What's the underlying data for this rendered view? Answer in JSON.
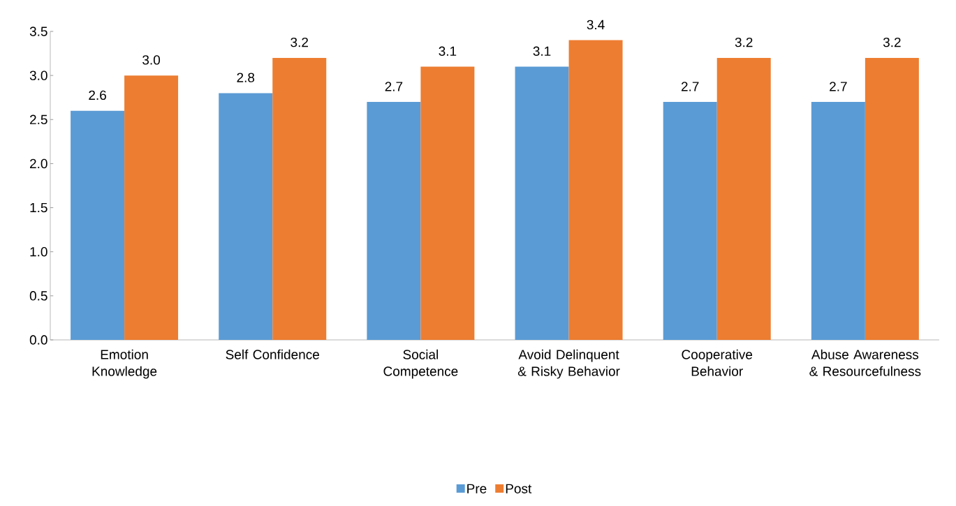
{
  "chart_data": {
    "type": "bar",
    "categories": [
      "Emotion Knowledge",
      "Self Confidence",
      "Social Competence",
      "Avoid Delinquent & Risky Behavior",
      "Cooperative Behavior",
      "Abuse Awareness & Resourcefulness"
    ],
    "series": [
      {
        "name": "Pre",
        "color": "#5b9bd5",
        "values": [
          2.6,
          2.8,
          2.7,
          3.1,
          2.7,
          2.7
        ],
        "value_labels": [
          "2.6",
          "2.8",
          "2.7",
          "3.1",
          "2.7",
          "2.7"
        ]
      },
      {
        "name": "Post",
        "color": "#ed7d31",
        "values": [
          3.0,
          3.2,
          3.1,
          3.4,
          3.2,
          3.2
        ],
        "value_labels": [
          "3.0",
          "3.2",
          "3.1",
          "3.4",
          "3.2",
          "3.2"
        ]
      }
    ],
    "ylim": [
      0,
      3.5
    ],
    "yticks": [
      {
        "value": 0,
        "label": "0.0"
      },
      {
        "value": 0.5,
        "label": "0.5"
      },
      {
        "value": 1,
        "label": "1.0"
      },
      {
        "value": 1.5,
        "label": "1.5"
      },
      {
        "value": 2,
        "label": "2.0"
      },
      {
        "value": 2.5,
        "label": "2.5"
      },
      {
        "value": 3,
        "label": "3.0"
      },
      {
        "value": 3.5,
        "label": "3.5"
      }
    ],
    "grid": false,
    "legend": "bottom"
  }
}
